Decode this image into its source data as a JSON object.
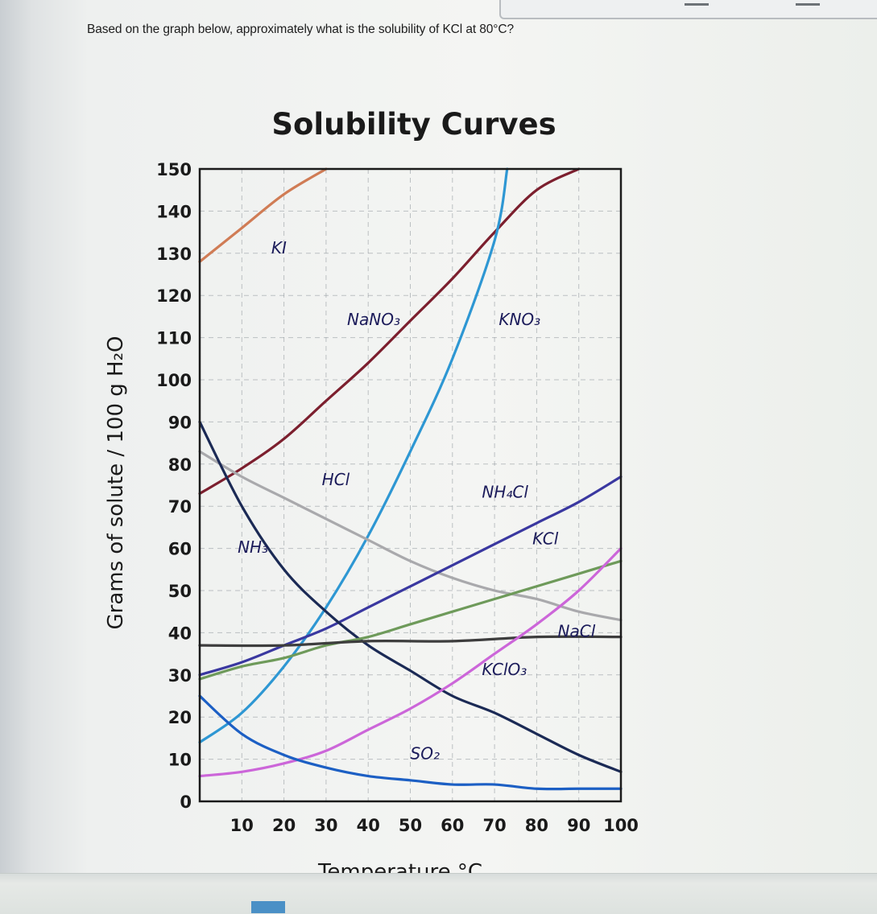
{
  "question": "Based on the graph below, approximately what is the solubility of KCl at 80°C?",
  "chart_data": {
    "type": "line",
    "title": "Solubility Curves",
    "xlabel": "Temperature °C",
    "ylabel": "Grams of solute / 100 g H₂O",
    "xlim": [
      0,
      100
    ],
    "ylim": [
      0,
      150
    ],
    "x_ticks": [
      "0",
      "10",
      "20",
      "30",
      "40",
      "50",
      "60",
      "70",
      "80",
      "90",
      "100"
    ],
    "y_ticks": [
      "0",
      "10",
      "20",
      "30",
      "40",
      "50",
      "60",
      "70",
      "80",
      "90",
      "100",
      "110",
      "120",
      "130",
      "140",
      "150"
    ],
    "grid": true,
    "series": [
      {
        "name": "KI",
        "color": "#d07c55",
        "label_at": [
          17,
          130
        ],
        "x": [
          0,
          10,
          20,
          30
        ],
        "y": [
          128,
          136,
          144,
          150
        ]
      },
      {
        "name": "NaNO₃",
        "color": "#7c1f2e",
        "label_at": [
          35,
          113
        ],
        "x": [
          0,
          10,
          20,
          30,
          40,
          50,
          60,
          70,
          80,
          90
        ],
        "y": [
          73,
          79,
          86,
          95,
          104,
          114,
          124,
          135,
          145,
          150
        ]
      },
      {
        "name": "KNO₃",
        "color": "#2e97d3",
        "label_at": [
          71,
          113
        ],
        "x": [
          0,
          10,
          20,
          30,
          40,
          50,
          60,
          70,
          73
        ],
        "y": [
          14,
          21,
          32,
          46,
          63,
          83,
          105,
          133,
          150
        ]
      },
      {
        "name": "HCl",
        "color": "#a9a9ac",
        "label_at": [
          29,
          75
        ],
        "x": [
          0,
          10,
          20,
          30,
          40,
          50,
          60,
          70,
          80,
          90,
          100
        ],
        "y": [
          83,
          77,
          72,
          67,
          62,
          57,
          53,
          50,
          48,
          45,
          43
        ]
      },
      {
        "name": "NH₄Cl",
        "color": "#3a38a0",
        "label_at": [
          67,
          72
        ],
        "x": [
          0,
          10,
          20,
          30,
          40,
          50,
          60,
          70,
          80,
          90,
          100
        ],
        "y": [
          30,
          33,
          37,
          41,
          46,
          51,
          56,
          61,
          66,
          71,
          77
        ]
      },
      {
        "name": "NH₃",
        "color": "#1b2a55",
        "label_at": [
          9,
          59
        ],
        "x": [
          0,
          10,
          20,
          30,
          40,
          50,
          60,
          70,
          80,
          90,
          100
        ],
        "y": [
          90,
          70,
          55,
          45,
          37,
          31,
          25,
          21,
          16,
          11,
          7
        ]
      },
      {
        "name": "KCl",
        "color": "#6e9a5a",
        "label_at": [
          79,
          61
        ],
        "x": [
          0,
          10,
          20,
          30,
          40,
          50,
          60,
          70,
          80,
          90,
          100
        ],
        "y": [
          29,
          32,
          34,
          37,
          39,
          42,
          45,
          48,
          51,
          54,
          57
        ]
      },
      {
        "name": "NaCl",
        "color": "#3d3d3d",
        "label_at": [
          85,
          39
        ],
        "x": [
          0,
          20,
          40,
          60,
          80,
          100
        ],
        "y": [
          37,
          37,
          38,
          38,
          39,
          39
        ]
      },
      {
        "name": "KClO₃",
        "color": "#cc66d9",
        "label_at": [
          67,
          30
        ],
        "x": [
          0,
          10,
          20,
          30,
          40,
          50,
          60,
          70,
          80,
          90,
          100
        ],
        "y": [
          6,
          7,
          9,
          12,
          17,
          22,
          28,
          35,
          42,
          50,
          60
        ]
      },
      {
        "name": "SO₂",
        "color": "#1c5fc4",
        "label_at": [
          50,
          10
        ],
        "x": [
          0,
          10,
          20,
          30,
          40,
          50,
          60,
          70,
          80,
          90,
          100
        ],
        "y": [
          25,
          16,
          11,
          8,
          6,
          5,
          4,
          4,
          3,
          3,
          3
        ]
      }
    ]
  }
}
